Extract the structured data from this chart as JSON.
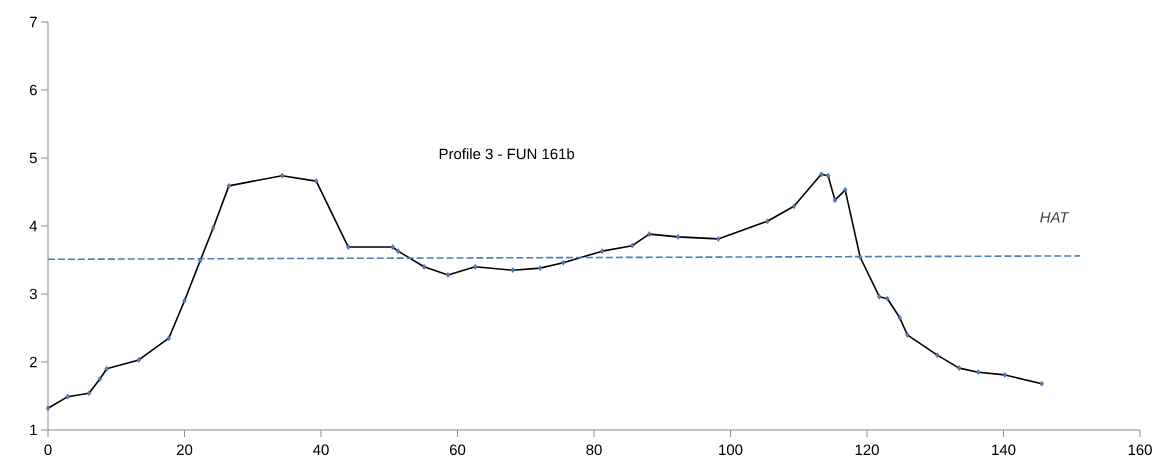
{
  "chart_data": {
    "type": "line",
    "title": "Profile 3 - FUN 161b",
    "xlim": [
      0,
      160
    ],
    "xticks": [
      0,
      20,
      40,
      60,
      80,
      100,
      120,
      140,
      160
    ],
    "ylim": [
      1,
      7
    ],
    "yticks": [
      1,
      2,
      3,
      4,
      5,
      6,
      7
    ],
    "grid": false,
    "legend": false,
    "marker": "diamond",
    "series": [
      {
        "color": "#000000",
        "x": [
          0,
          2.9,
          6.0,
          7.6,
          8.6,
          13.3,
          17.7,
          20.0,
          22.3,
          24.2,
          26.5,
          34.3,
          39.3,
          44.0,
          50.5,
          51.3,
          55.1,
          58.6,
          62.6,
          68.1,
          72.1,
          75.5,
          81.2,
          85.6,
          88.1,
          92.3,
          98.2,
          105.4,
          109.3,
          113.3,
          114.3,
          115.3,
          116.8,
          119.0,
          121.8,
          123.0,
          124.8,
          125.9,
          130.3,
          133.5,
          136.3,
          140.2,
          145.6
        ],
        "values": [
          1.32,
          1.49,
          1.54,
          1.75,
          1.9,
          2.03,
          2.35,
          2.9,
          3.49,
          3.97,
          4.59,
          4.74,
          4.66,
          3.69,
          3.69,
          3.63,
          3.4,
          3.28,
          3.4,
          3.35,
          3.38,
          3.46,
          3.63,
          3.71,
          3.88,
          3.84,
          3.81,
          4.07,
          4.29,
          4.76,
          4.74,
          4.38,
          4.53,
          3.54,
          2.96,
          2.93,
          2.65,
          2.4,
          2.1,
          1.91,
          1.85,
          1.81,
          1.68
        ]
      },
      {
        "name": "HAT",
        "color": "#4a7ebb",
        "marker": "none",
        "line_style": "dashed",
        "x": [
          0,
          151.2
        ],
        "values": [
          3.51,
          3.56
        ]
      }
    ]
  }
}
